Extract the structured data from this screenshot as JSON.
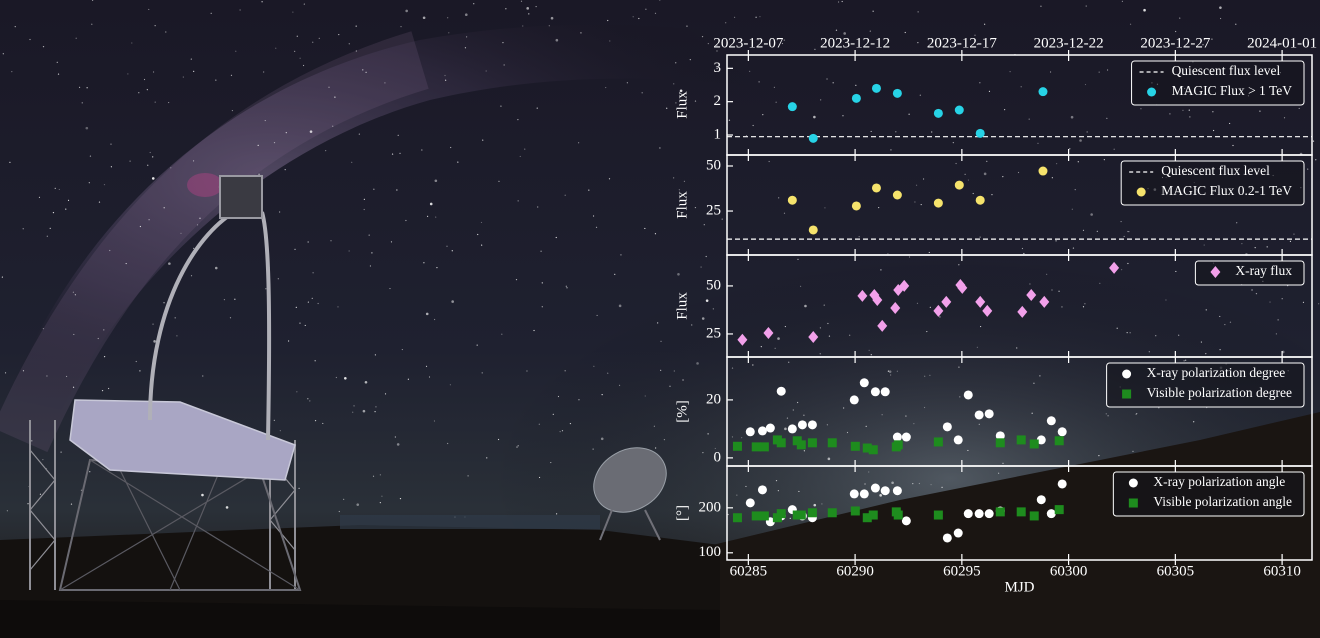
{
  "chart_data": [
    {
      "type": "scatter",
      "ylabel": "Flux",
      "xlim": [
        60284,
        60311.4
      ],
      "ylim": [
        0.4,
        3.4
      ],
      "yticks": [
        1,
        2,
        3
      ],
      "top_xticks": [
        {
          "value": 60285,
          "label": "2023-12-07"
        },
        {
          "value": 60290,
          "label": "2023-12-12"
        },
        {
          "value": 60295,
          "label": "2023-12-17"
        },
        {
          "value": 60300,
          "label": "2023-12-22"
        },
        {
          "value": 60305,
          "label": "2023-12-27"
        },
        {
          "value": 60310,
          "label": "2024-01-01"
        }
      ],
      "hline": {
        "name": "Quiescent flux level",
        "value": 0.95,
        "color": "#ffffff"
      },
      "legend": "upper right",
      "series": [
        {
          "name": "MAGIC Flux > 1 TeV",
          "color": "#27d3e6",
          "marker": "o",
          "x": [
            60287.06,
            60288.04,
            60290.06,
            60291.0,
            60291.98,
            60293.9,
            60294.88,
            60295.86,
            60298.8
          ],
          "values": [
            1.85,
            0.9,
            2.1,
            2.4,
            2.25,
            1.65,
            1.75,
            1.05,
            2.3
          ]
        }
      ]
    },
    {
      "type": "scatter",
      "ylabel": "Flux",
      "xlim": [
        60284,
        60311.4
      ],
      "ylim": [
        0.6,
        56.1
      ],
      "yticks": [
        25,
        50
      ],
      "hline": {
        "name": "Quiescent flux level",
        "value": 9.4,
        "color": "#ffffff"
      },
      "legend": "upper right",
      "series": [
        {
          "name": "MAGIC Flux 0.2-1 TeV",
          "color": "#f6e36c",
          "marker": "o",
          "x": [
            60287.06,
            60288.04,
            60290.06,
            60291.0,
            60291.98,
            60293.9,
            60294.88,
            60295.86,
            60298.8
          ],
          "values": [
            31,
            14.5,
            27.8,
            37.8,
            33.9,
            29.4,
            39.4,
            31,
            47.2
          ]
        }
      ]
    },
    {
      "type": "scatter",
      "ylabel": "Flux",
      "xlim": [
        60284,
        60311.4
      ],
      "ylim": [
        13,
        66.1
      ],
      "yticks": [
        25,
        50
      ],
      "legend": "upper right",
      "series": [
        {
          "name": "X-ray flux",
          "color": "#f2a0ea",
          "marker": "D",
          "x": [
            60284.72,
            60285.94,
            60288.04,
            60290.34,
            60290.9,
            60291.04,
            60291.27,
            60291.88,
            60292.02,
            60292.3,
            60293.9,
            60294.27,
            60294.93,
            60295.02,
            60295.86,
            60296.19,
            60297.83,
            60298.25,
            60298.86,
            60302.13
          ],
          "values": [
            22,
            25.5,
            23.4,
            44.8,
            45.3,
            42.7,
            29.2,
            38.5,
            47.9,
            50,
            37,
            41.7,
            50.5,
            49,
            41.7,
            37,
            36.5,
            45.3,
            41.7,
            59.4
          ]
        }
      ]
    },
    {
      "type": "scatter",
      "ylabel": "[%]",
      "xlim": [
        60284,
        60311.4
      ],
      "ylim": [
        -2.8,
        34.8
      ],
      "yticks": [
        0,
        20
      ],
      "legend": "upper right",
      "series": [
        {
          "name": "X-ray polarization degree",
          "color": "#ffffff",
          "marker": "o",
          "x": [
            60285.09,
            60285.66,
            60286.03,
            60286.54,
            60287.06,
            60287.53,
            60288.0,
            60289.96,
            60290.43,
            60290.95,
            60291.41,
            60291.98,
            60292.4,
            60294.32,
            60294.83,
            60295.3,
            60295.81,
            60296.28,
            60296.8,
            60298.72,
            60299.19,
            60299.7
          ],
          "values": [
            9,
            9.3,
            10.3,
            23,
            10,
            11.4,
            11.4,
            20,
            25.9,
            22.8,
            22.8,
            7.2,
            7.2,
            10.7,
            6.2,
            21.7,
            14.8,
            15.2,
            7.6,
            6.2,
            12.8,
            9
          ]
        },
        {
          "name": "Visible polarization degree",
          "color": "#1e8c1e",
          "marker": "s",
          "x": [
            60284.49,
            60285.37,
            60285.75,
            60286.36,
            60286.54,
            60287.29,
            60287.48,
            60288.0,
            60288.93,
            60290.01,
            60290.57,
            60290.85,
            60291.93,
            60292.02,
            60293.9,
            60296.8,
            60297.78,
            60298.39,
            60299.56
          ],
          "values": [
            4,
            3.8,
            3.8,
            6.2,
            5.2,
            5.9,
            4.5,
            5.2,
            5.2,
            4,
            3.4,
            2.8,
            3.8,
            4.5,
            5.5,
            5.2,
            6.2,
            4.8,
            5.9
          ]
        }
      ]
    },
    {
      "type": "scatter",
      "ylabel": "[°]",
      "xlabel": "MJD",
      "xlim": [
        60284,
        60311.4
      ],
      "ylim": [
        84,
        293
      ],
      "yticks": [
        100,
        200
      ],
      "xticks": [
        60285,
        60290,
        60295,
        60300,
        60305,
        60310
      ],
      "legend": "upper right",
      "series": [
        {
          "name": "X-ray polarization angle",
          "color": "#ffffff",
          "marker": "o",
          "x": [
            60285.09,
            60285.66,
            60286.03,
            60286.54,
            60287.06,
            60287.53,
            60288.0,
            60289.96,
            60290.43,
            60290.95,
            60291.41,
            60291.98,
            60292.4,
            60294.32,
            60294.83,
            60295.3,
            60295.81,
            60296.28,
            60296.8,
            60298.72,
            60299.19,
            60299.7
          ],
          "values": [
            211,
            240,
            169,
            182,
            196,
            182,
            178,
            231,
            231,
            244,
            238,
            238,
            171,
            133,
            144,
            187,
            187,
            187,
            193,
            218,
            187,
            253
          ]
        },
        {
          "name": "Visible polarization angle",
          "color": "#1e8c1e",
          "marker": "s",
          "x": [
            60284.49,
            60285.37,
            60285.75,
            60286.36,
            60286.54,
            60287.29,
            60287.48,
            60288.0,
            60288.93,
            60290.01,
            60290.57,
            60290.85,
            60291.93,
            60292.02,
            60293.9,
            60296.8,
            60297.78,
            60298.39,
            60299.56
          ],
          "values": [
            178,
            182,
            182,
            178,
            187,
            184,
            184,
            189,
            189,
            193,
            178,
            184,
            191,
            184,
            184,
            191,
            191,
            182,
            196
          ]
        }
      ]
    }
  ]
}
